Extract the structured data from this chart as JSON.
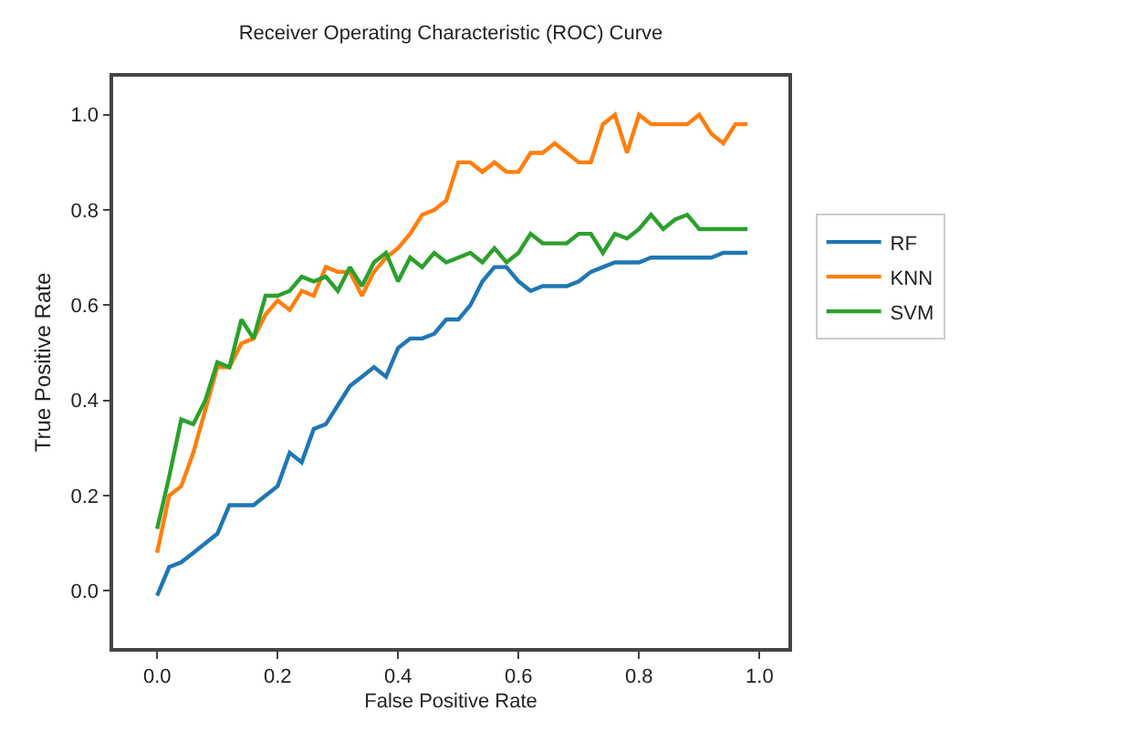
{
  "chart_data": {
    "type": "line",
    "title": "Receiver Operating Characteristic (ROC) Curve",
    "xlabel": "False Positive Rate",
    "ylabel": "True Positive Rate",
    "x": [
      0,
      0.02,
      0.04,
      0.06,
      0.08,
      0.1,
      0.12,
      0.14,
      0.16,
      0.18,
      0.2,
      0.22,
      0.24,
      0.26,
      0.28,
      0.3,
      0.32,
      0.34,
      0.36,
      0.38,
      0.4,
      0.42,
      0.44,
      0.46,
      0.48,
      0.5,
      0.52,
      0.54,
      0.56,
      0.58,
      0.6,
      0.62,
      0.64,
      0.66,
      0.68,
      0.7,
      0.72,
      0.74,
      0.76,
      0.78,
      0.8,
      0.82,
      0.84,
      0.86,
      0.88,
      0.9,
      0.92,
      0.94,
      0.96,
      0.98
    ],
    "series": [
      {
        "name": "RF",
        "color": "#1f77b4",
        "values": [
          -0.01,
          0.05,
          0.06,
          0.08,
          0.1,
          0.12,
          0.18,
          0.18,
          0.18,
          0.2,
          0.22,
          0.29,
          0.27,
          0.34,
          0.35,
          0.39,
          0.43,
          0.45,
          0.47,
          0.45,
          0.51,
          0.53,
          0.53,
          0.54,
          0.57,
          0.57,
          0.6,
          0.65,
          0.68,
          0.68,
          0.65,
          0.63,
          0.64,
          0.64,
          0.64,
          0.65,
          0.67,
          0.68,
          0.69,
          0.69,
          0.69,
          0.7,
          0.7,
          0.7,
          0.7,
          0.7,
          0.7,
          0.71,
          0.71,
          0.71
        ]
      },
      {
        "name": "KNN",
        "color": "#ff7f0e",
        "values": [
          0.08,
          0.2,
          0.22,
          0.29,
          0.38,
          0.47,
          0.47,
          0.52,
          0.53,
          0.58,
          0.61,
          0.59,
          0.63,
          0.62,
          0.68,
          0.67,
          0.67,
          0.62,
          0.67,
          0.7,
          0.72,
          0.75,
          0.79,
          0.8,
          0.82,
          0.9,
          0.9,
          0.88,
          0.9,
          0.88,
          0.88,
          0.92,
          0.92,
          0.94,
          0.92,
          0.9,
          0.9,
          0.98,
          1.0,
          0.92,
          1.0,
          0.98,
          0.98,
          0.98,
          0.98,
          1.0,
          0.96,
          0.94,
          0.98,
          0.98
        ]
      },
      {
        "name": "SVM",
        "color": "#2ca02c",
        "values": [
          0.13,
          0.24,
          0.36,
          0.35,
          0.4,
          0.48,
          0.47,
          0.57,
          0.53,
          0.62,
          0.62,
          0.63,
          0.66,
          0.65,
          0.66,
          0.63,
          0.68,
          0.64,
          0.69,
          0.71,
          0.65,
          0.7,
          0.68,
          0.71,
          0.69,
          0.7,
          0.71,
          0.69,
          0.72,
          0.69,
          0.71,
          0.75,
          0.73,
          0.73,
          0.73,
          0.75,
          0.75,
          0.71,
          0.75,
          0.74,
          0.76,
          0.79,
          0.76,
          0.78,
          0.79,
          0.76,
          0.76,
          0.76,
          0.76,
          0.76
        ]
      }
    ],
    "xlim": [
      -0.073,
      1.048
    ],
    "ylim": [
      -0.12,
      1.08
    ],
    "xticks": [
      {
        "value": 0,
        "label": "0.0"
      },
      {
        "value": 0.2,
        "label": "0.2"
      },
      {
        "value": 0.4,
        "label": "0.4"
      },
      {
        "value": 0.6,
        "label": "0.6"
      },
      {
        "value": 0.8,
        "label": "0.8"
      },
      {
        "value": 1,
        "label": "1.0"
      }
    ],
    "yticks": [
      {
        "value": 0,
        "label": "0.0"
      },
      {
        "value": 0.2,
        "label": "0.2"
      },
      {
        "value": 0.4,
        "label": "0.4"
      },
      {
        "value": 0.6,
        "label": "0.6"
      },
      {
        "value": 0.8,
        "label": "0.8"
      },
      {
        "value": 1,
        "label": "1.0"
      }
    ],
    "legend": "right",
    "marker": "none",
    "line_style": "solid"
  }
}
